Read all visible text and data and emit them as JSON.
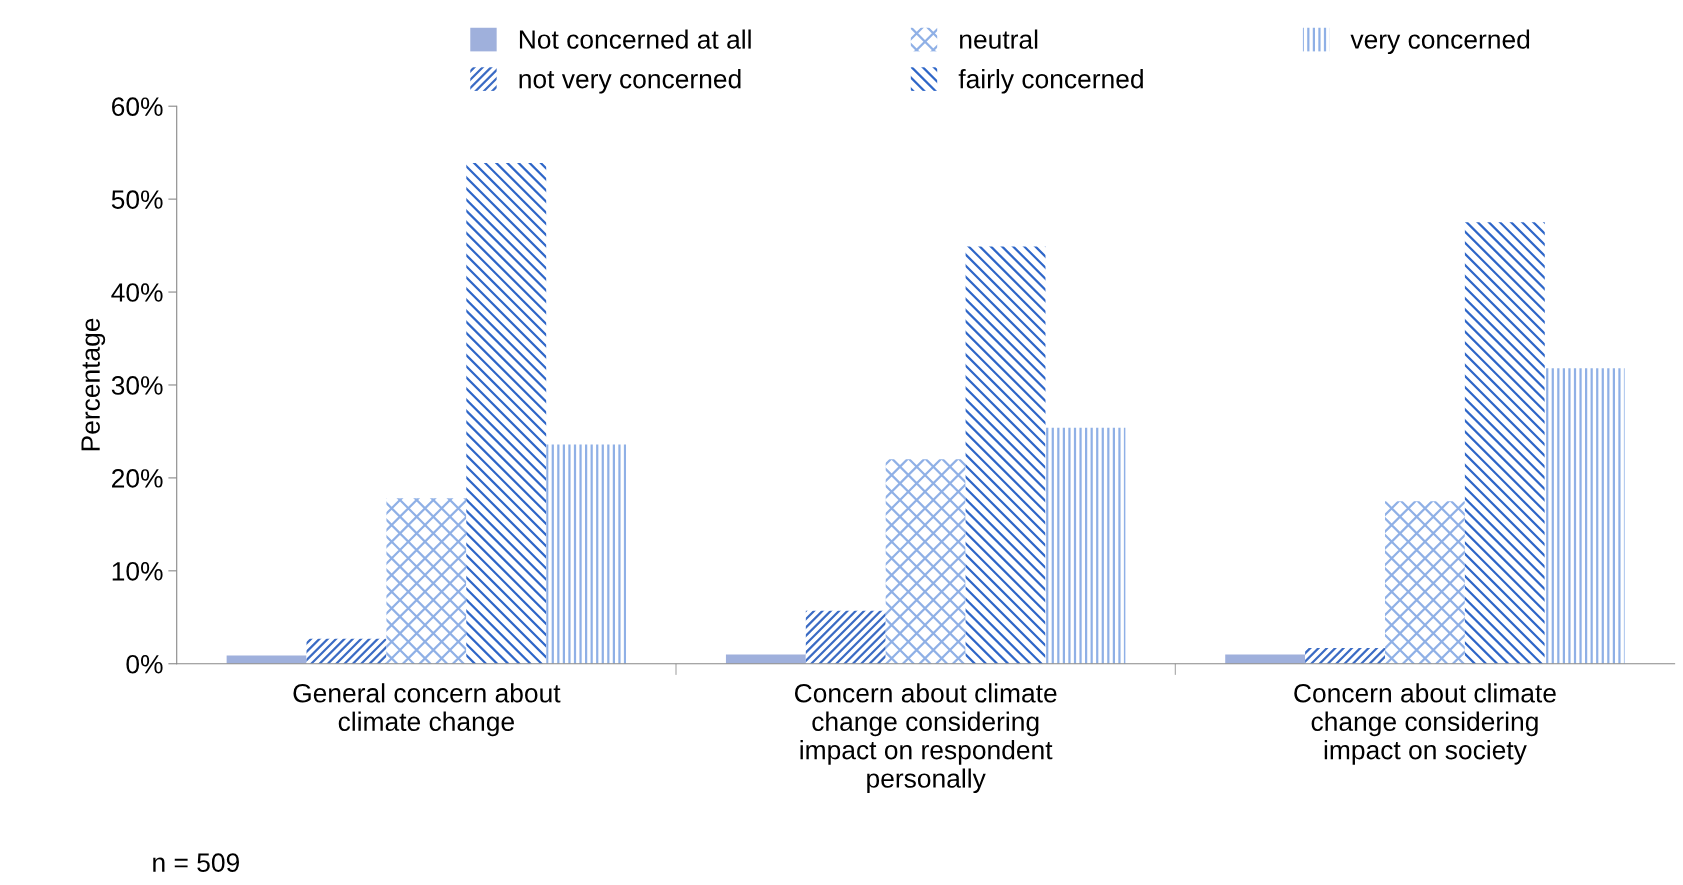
{
  "chart_data": {
    "type": "bar",
    "ylabel": "Percentage",
    "categories": [
      "General concern about\nclimate change",
      "Concern about climate\nchange considering\nimpact on respondent\npersonally",
      "Concern about climate\nchange considering\nimpact on society"
    ],
    "series": [
      {
        "name": "Not concerned at all",
        "color": "#9fb0dc",
        "values": [
          0.9,
          1.0,
          1.0
        ]
      },
      {
        "name": "not very concerned",
        "color": "#3a6bc4",
        "values": [
          2.7,
          5.7,
          1.7
        ]
      },
      {
        "name": "neutral",
        "color": "#8fb0e6",
        "values": [
          17.8,
          22.0,
          17.5
        ]
      },
      {
        "name": "fairly concerned",
        "color": "#2e66c8",
        "values": [
          53.9,
          44.9,
          47.5
        ]
      },
      {
        "name": "very concerned",
        "color": "#8fb0e6",
        "values": [
          23.6,
          25.4,
          31.8
        ]
      }
    ],
    "ylim": [
      0,
      60
    ],
    "yticks": [
      {
        "value": 0,
        "label": "0%"
      },
      {
        "value": 10,
        "label": "10%"
      },
      {
        "value": 20,
        "label": "20%"
      },
      {
        "value": 30,
        "label": "30%"
      },
      {
        "value": 40,
        "label": "40%"
      },
      {
        "value": 50,
        "label": "50%"
      },
      {
        "value": 60,
        "label": "60%"
      }
    ],
    "grid": false,
    "legend": "top",
    "annotations": [
      "n = 509"
    ]
  }
}
